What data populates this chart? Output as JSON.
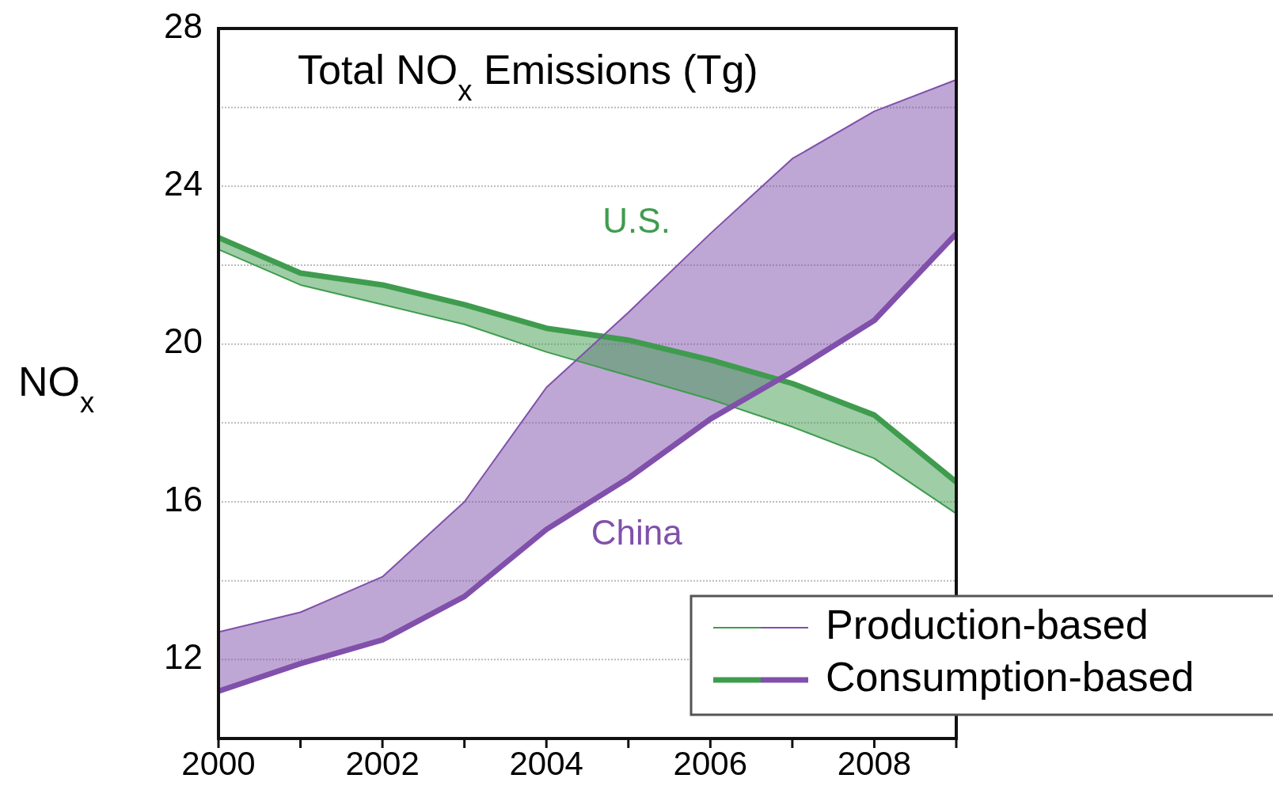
{
  "chart_data": {
    "type": "line",
    "title": "Total NO$_{x}$ Emissions (Tg)",
    "ylabel": "NO$_{x}$",
    "x": [
      2000,
      2001,
      2002,
      2003,
      2004,
      2005,
      2006,
      2007,
      2008,
      2009
    ],
    "xlim": [
      2000,
      2009
    ],
    "xticks": [
      2000,
      {
        "value": 2001,
        "label": null
      },
      2002,
      {
        "value": 2003,
        "label": null
      },
      2004,
      {
        "value": 2005,
        "label": null
      },
      2006,
      {
        "value": 2007,
        "label": null
      },
      2008,
      {
        "value": 2009,
        "label": null
      }
    ],
    "ylim": [
      10,
      28
    ],
    "yticks": [
      12,
      {
        "value": 14,
        "label": null
      },
      16,
      {
        "value": 18,
        "label": null
      },
      20,
      {
        "value": 22,
        "label": null
      },
      24,
      {
        "value": 26,
        "label": null
      },
      28
    ],
    "grid": "y",
    "legend": "bottom right",
    "annotations": [
      "U.S.",
      "China"
    ],
    "series": [
      {
        "name": "Production-based",
        "color": "#3f9c4e",
        "values": [
          22.4,
          21.5,
          21.0,
          20.5,
          19.8,
          19.2,
          18.6,
          17.9,
          17.1,
          15.7
        ]
      },
      {
        "name": "Consumption-based",
        "color": "#3f9c4e",
        "values": [
          22.7,
          21.8,
          21.5,
          21.0,
          20.4,
          20.1,
          19.6,
          19.0,
          18.2,
          16.5
        ],
        "lower": [
          22.4,
          21.5,
          21.0,
          20.5,
          19.8,
          19.2,
          18.6,
          17.9,
          17.1,
          15.7
        ],
        "upper": [
          22.7,
          21.8,
          21.5,
          21.0,
          20.4,
          20.1,
          19.6,
          19.0,
          18.2,
          16.5
        ]
      },
      {
        "color": "#8050ab",
        "values": [
          12.7,
          13.2,
          14.1,
          16.0,
          18.9,
          20.8,
          22.8,
          24.7,
          25.9,
          26.7
        ]
      },
      {
        "color": "#8050ab",
        "values": [
          11.2,
          11.9,
          12.5,
          13.6,
          15.3,
          16.6,
          18.1,
          19.3,
          20.6,
          22.8
        ],
        "lower": [
          11.2,
          11.9,
          12.5,
          13.6,
          15.3,
          16.6,
          18.1,
          19.3,
          20.6,
          22.8
        ],
        "upper": [
          12.7,
          13.2,
          14.1,
          16.0,
          18.9,
          20.8,
          22.8,
          24.7,
          25.9,
          26.7
        ]
      }
    ]
  }
}
